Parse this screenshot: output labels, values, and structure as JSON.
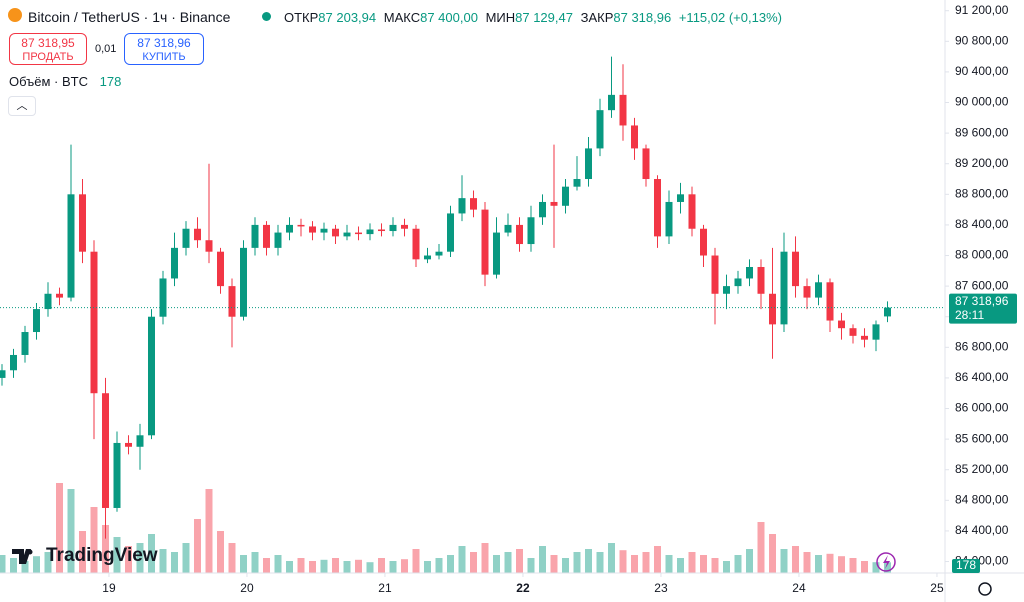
{
  "chart_data": {
    "type": "candlestick",
    "title": "Bitcoin / TetherUS · 1ч · Binance",
    "header": {
      "open_label": "ОТКР",
      "open": "87 203,94",
      "high_label": "МАКС",
      "high": "87 400,00",
      "low_label": "МИН",
      "low": "87 129,47",
      "close_label": "ЗАКР",
      "close": "87 318,96",
      "change": "+115,02 (+0,13%)"
    },
    "trade": {
      "sell_price": "87 318,95",
      "sell": "ПРОДАТЬ",
      "spread": "0,01",
      "buy_price": "87 318,96",
      "buy": "КУПИТЬ"
    },
    "volume_title": "Объём · BTC",
    "countdown": "28:11",
    "logo": "TradingView",
    "up_color": "#089981",
    "down_color": "#f23645",
    "open": [
      86400,
      86500,
      86700,
      87000,
      87300,
      87500,
      87450,
      88800,
      88050,
      86200,
      84700,
      85550,
      85500,
      85650,
      87200,
      87700,
      88100,
      88350,
      88200,
      88050,
      87600,
      87200,
      88100,
      88400,
      88100,
      88300,
      88400,
      88380,
      88300,
      88350,
      88250,
      88300,
      88280,
      88340,
      88320,
      88400,
      88350,
      87950,
      88000,
      88050,
      88550,
      88750,
      88600,
      87750,
      88300,
      88400,
      88150,
      88500,
      88700,
      88650,
      88900,
      89000,
      89400,
      89900,
      90100,
      89700,
      89400,
      89000,
      88250,
      88700,
      88800,
      88350,
      88000,
      87500,
      87600,
      87700,
      87850,
      87500,
      87100,
      88050,
      87600,
      87450,
      87650,
      87150,
      87050,
      86950,
      86900,
      87203.94
    ],
    "high": [
      86580,
      86780,
      87080,
      87380,
      87650,
      87580,
      89450,
      89000,
      88200,
      86400,
      85700,
      85650,
      85800,
      87300,
      87800,
      88300,
      88450,
      88500,
      89200,
      88100,
      87700,
      88200,
      88500,
      88450,
      88400,
      88500,
      88480,
      88450,
      88430,
      88400,
      88400,
      88380,
      88420,
      88420,
      88500,
      88480,
      88400,
      88100,
      88150,
      88650,
      89050,
      88850,
      88700,
      88500,
      88550,
      88500,
      88650,
      88800,
      89450,
      89000,
      89300,
      89550,
      90050,
      90600,
      90500,
      89800,
      89450,
      89050,
      88850,
      88950,
      88900,
      88400,
      88100,
      87750,
      87800,
      87950,
      87950,
      88100,
      88300,
      88250,
      87700,
      87750,
      87700,
      87250,
      87100,
      87050,
      87150,
      87400
    ],
    "low": [
      86300,
      86400,
      86600,
      86900,
      87200,
      87350,
      87400,
      87900,
      85600,
      84300,
      84650,
      85400,
      85200,
      85600,
      87100,
      87600,
      88000,
      88100,
      87900,
      87500,
      86800,
      87150,
      88000,
      88000,
      88000,
      88200,
      88250,
      88200,
      88200,
      88150,
      88200,
      88200,
      88200,
      88250,
      88250,
      88250,
      87850,
      87900,
      87950,
      87980,
      88450,
      88500,
      87600,
      87700,
      88250,
      88050,
      88050,
      88400,
      88100,
      88550,
      88850,
      88900,
      89300,
      89800,
      89500,
      89250,
      88900,
      88100,
      88150,
      88550,
      88250,
      87850,
      87100,
      87300,
      87500,
      87600,
      87300,
      86650,
      87000,
      87450,
      87300,
      87350,
      87000,
      86900,
      86850,
      86800,
      86750,
      87129.47
    ],
    "close": [
      86500,
      86700,
      87000,
      87300,
      87500,
      87450,
      88800,
      88050,
      86200,
      84700,
      85550,
      85500,
      85650,
      87200,
      87700,
      88100,
      88350,
      88200,
      88050,
      87600,
      87200,
      88100,
      88400,
      88100,
      88300,
      88400,
      88380,
      88300,
      88350,
      88250,
      88300,
      88280,
      88340,
      88320,
      88400,
      88350,
      87950,
      88000,
      88050,
      88550,
      88750,
      88600,
      87750,
      88300,
      88400,
      88150,
      88500,
      88700,
      88650,
      88900,
      89000,
      89400,
      89900,
      90100,
      89700,
      89400,
      89000,
      88250,
      88700,
      88800,
      88350,
      88000,
      87500,
      87600,
      87700,
      87850,
      87500,
      87100,
      88050,
      87600,
      87450,
      87650,
      87150,
      87050,
      86950,
      86900,
      87100,
      87318.96
    ],
    "volume": [
      300,
      250,
      200,
      280,
      350,
      1500,
      1400,
      700,
      1100,
      800,
      600,
      450,
      500,
      650,
      400,
      350,
      500,
      900,
      1400,
      700,
      500,
      300,
      350,
      250,
      300,
      200,
      250,
      200,
      220,
      250,
      200,
      220,
      180,
      250,
      200,
      230,
      400,
      200,
      250,
      300,
      450,
      350,
      500,
      300,
      350,
      400,
      250,
      450,
      300,
      250,
      350,
      400,
      350,
      500,
      380,
      300,
      350,
      450,
      300,
      250,
      350,
      300,
      250,
      200,
      300,
      400,
      850,
      650,
      400,
      450,
      350,
      300,
      320,
      280,
      250,
      200,
      180,
      178
    ],
    "ylim": [
      83850,
      91340
    ],
    "volume_ylim": [
      0,
      2500
    ],
    "yticks": [
      {
        "value": 84000,
        "label": "84 000,00"
      },
      {
        "value": 84400,
        "label": "84 400,00"
      },
      {
        "value": 84800,
        "label": "84 800,00"
      },
      {
        "value": 85200,
        "label": "85 200,00"
      },
      {
        "value": 85600,
        "label": "85 600,00"
      },
      {
        "value": 86000,
        "label": "86 000,00"
      },
      {
        "value": 86400,
        "label": "86 400,00"
      },
      {
        "value": 86800,
        "label": "86 800,00"
      },
      {
        "value": 87200,
        "label": "87 200,00"
      },
      {
        "value": 87600,
        "label": "87 600,00"
      },
      {
        "value": 88000,
        "label": "88 000,00"
      },
      {
        "value": 88400,
        "label": "88 400,00"
      },
      {
        "value": 88800,
        "label": "88 800,00"
      },
      {
        "value": 89200,
        "label": "89 200,00"
      },
      {
        "value": 89600,
        "label": "89 600,00"
      },
      {
        "value": 90000,
        "label": "90 000,00"
      },
      {
        "value": 90400,
        "label": "90 400,00"
      },
      {
        "value": 90800,
        "label": "90 800,00"
      },
      {
        "value": 91200,
        "label": "91 200,00"
      }
    ],
    "xticks": [
      {
        "value": 9.3,
        "label": "19"
      },
      {
        "value": 21.3,
        "label": "20"
      },
      {
        "value": 33.3,
        "label": "21"
      },
      {
        "value": 45.3,
        "label": "22"
      },
      {
        "value": 57.3,
        "label": "23"
      },
      {
        "value": 69.3,
        "label": "24"
      },
      {
        "value": 81.3,
        "label": "25"
      }
    ],
    "grid": false
  }
}
